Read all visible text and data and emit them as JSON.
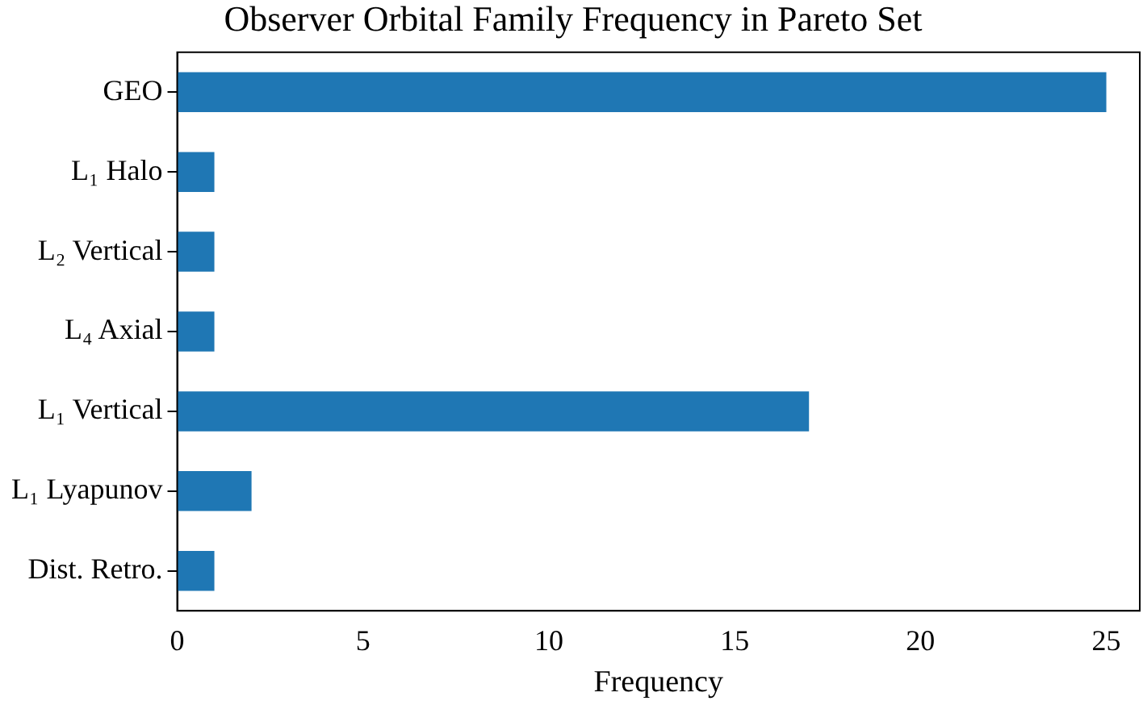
{
  "chart_data": {
    "type": "bar",
    "orientation": "horizontal",
    "title": "Observer Orbital Family Frequency in Pareto Set",
    "xlabel": "Frequency",
    "categories": [
      "GEO",
      "L₁ Halo",
      "L₂ Vertical",
      "L₄ Axial",
      "L₁ Vertical",
      "L₁ Lyapunov",
      "Dist. Retro."
    ],
    "values": [
      25,
      1,
      1,
      1,
      17,
      2,
      1
    ],
    "color": "#1f77b4",
    "xlim": [
      0,
      25.9
    ],
    "xticks": [
      0,
      5,
      10,
      15,
      20,
      25
    ],
    "grid": false,
    "legend": false
  }
}
